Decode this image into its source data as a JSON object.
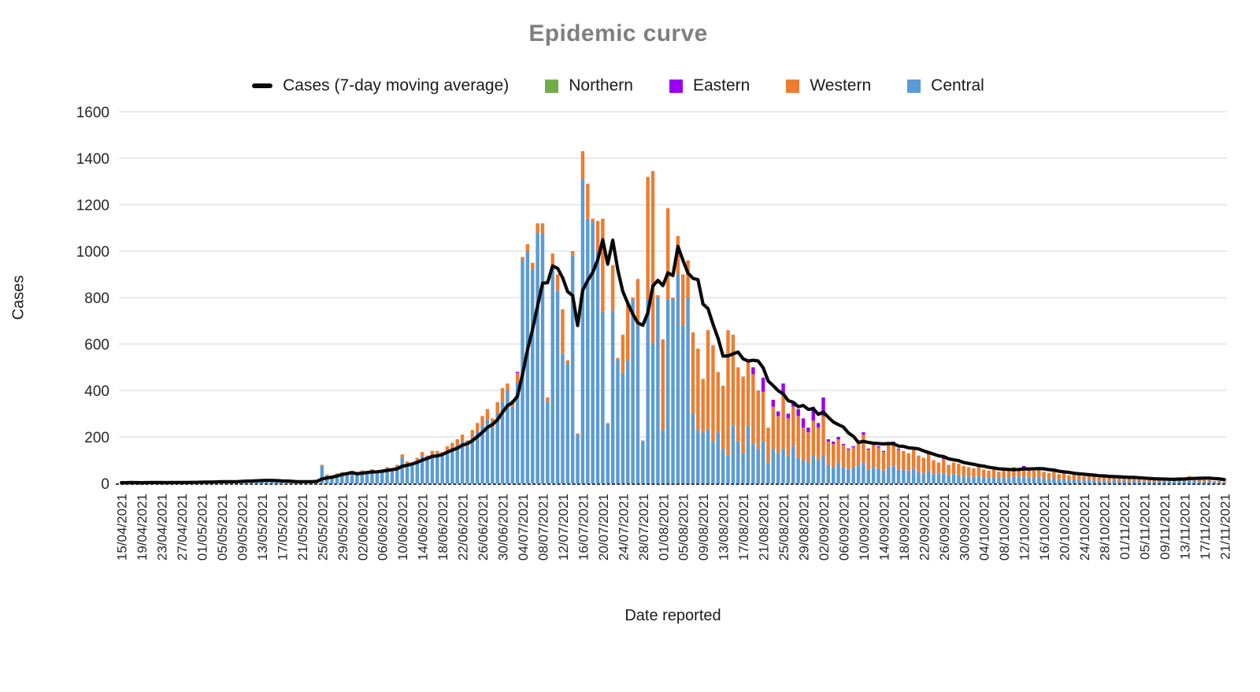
{
  "title": "Epidemic curve",
  "y_axis": {
    "label": "Cases",
    "ticks": [
      0,
      200,
      400,
      600,
      800,
      1000,
      1200,
      1400,
      1600
    ],
    "max": 1600
  },
  "x_axis": {
    "label": "Date reported"
  },
  "legend": [
    {
      "label": "Cases (7-day moving average)",
      "type": "line",
      "color": "#0a0a0a"
    },
    {
      "label": "Northern",
      "type": "box",
      "color": "#70AD47"
    },
    {
      "label": "Eastern",
      "type": "box",
      "color": "#9B00F2"
    },
    {
      "label": "Western",
      "type": "box",
      "color": "#ED7D31"
    },
    {
      "label": "Central",
      "type": "box",
      "color": "#5B9BD5"
    }
  ],
  "chart_data": {
    "type": "bar",
    "stacked": true,
    "grid": true,
    "legend_position": "top",
    "ylim": [
      0,
      1600
    ],
    "start_date": "15/04/2021",
    "end_date": "21/11/2021",
    "bar_interval": "daily",
    "n_days": 221,
    "x_tick_every": 4,
    "x_tick_labels": [
      "15/04/2021",
      "19/04/2021",
      "23/04/2021",
      "27/04/2021",
      "01/05/2021",
      "05/05/2021",
      "09/05/2021",
      "13/05/2021",
      "17/05/2021",
      "21/05/2021",
      "25/05/2021",
      "29/05/2021",
      "02/06/2021",
      "06/06/2021",
      "10/06/2021",
      "14/06/2021",
      "18/06/2021",
      "22/06/2021",
      "26/06/2021",
      "30/06/2021",
      "04/07/2021",
      "08/07/2021",
      "12/07/2021",
      "16/07/2021",
      "20/07/2021",
      "24/07/2021",
      "28/07/2021",
      "01/08/2021",
      "05/08/2021",
      "09/08/2021",
      "13/08/2021",
      "17/08/2021",
      "21/08/2021",
      "25/08/2021",
      "29/08/2021",
      "02/09/2021",
      "06/09/2021",
      "10/09/2021",
      "14/09/2021",
      "18/09/2021",
      "22/09/2021",
      "26/09/2021",
      "30/09/2021",
      "04/10/2021",
      "08/10/2021",
      "12/10/2021",
      "16/10/2021",
      "20/10/2021",
      "24/10/2021",
      "28/10/2021",
      "01/11/2021",
      "05/11/2021",
      "09/11/2021",
      "13/11/2021",
      "17/11/2021",
      "21/11/2021"
    ],
    "series": [
      {
        "name": "Central",
        "color": "#5B9BD5",
        "values": [
          2,
          3,
          4,
          3,
          2,
          3,
          5,
          4,
          3,
          2,
          4,
          5,
          3,
          4,
          6,
          5,
          6,
          7,
          5,
          8,
          9,
          7,
          6,
          8,
          12,
          14,
          10,
          16,
          13,
          9,
          8,
          7,
          6,
          8,
          7,
          5,
          6,
          8,
          10,
          12,
          75,
          35,
          28,
          40,
          45,
          38,
          42,
          40,
          52,
          45,
          56,
          48,
          54,
          64,
          60,
          72,
          110,
          85,
          78,
          98,
          118,
          105,
          122,
          130,
          118,
          138,
          147,
          165,
          182,
          160,
          198,
          225,
          250,
          275,
          240,
          300,
          350,
          400,
          330,
          435,
          960,
          1000,
          920,
          1080,
          1075,
          350,
          940,
          830,
          560,
          515,
          980,
          210,
          1310,
          1140,
          1125,
          1000,
          740,
          255,
          745,
          535,
          475,
          530,
          790,
          680,
          180,
          790,
          600,
          800,
          230,
          790,
          795,
          900,
          680,
          800,
          300,
          230,
          220,
          230,
          180,
          220,
          150,
          120,
          250,
          180,
          130,
          250,
          170,
          150,
          180,
          90,
          150,
          130,
          150,
          120,
          160,
          110,
          100,
          90,
          120,
          100,
          120,
          80,
          70,
          90,
          70,
          60,
          70,
          80,
          90,
          60,
          70,
          65,
          55,
          70,
          75,
          60,
          60,
          55,
          65,
          50,
          45,
          55,
          40,
          40,
          45,
          35,
          40,
          35,
          30,
          30,
          28,
          33,
          26,
          24,
          28,
          22,
          26,
          24,
          30,
          28,
          30,
          26,
          24,
          28,
          22,
          20,
          22,
          18,
          20,
          15,
          18,
          15,
          13,
          15,
          13,
          11,
          13,
          11,
          13,
          11,
          12,
          10,
          12,
          10,
          8,
          10,
          8,
          10,
          8,
          10,
          8,
          12,
          10,
          15,
          12,
          10,
          10,
          8,
          5,
          6,
          4
        ]
      },
      {
        "name": "Western",
        "color": "#ED7D31",
        "values": [
          1,
          0,
          1,
          0,
          0,
          1,
          0,
          0,
          1,
          0,
          0,
          1,
          0,
          0,
          1,
          0,
          0,
          1,
          0,
          0,
          1,
          0,
          0,
          1,
          2,
          1,
          0,
          2,
          1,
          0,
          1,
          0,
          0,
          1,
          0,
          0,
          1,
          0,
          1,
          2,
          5,
          3,
          2,
          3,
          4,
          3,
          4,
          3,
          4,
          4,
          5,
          5,
          5,
          6,
          6,
          8,
          15,
          10,
          10,
          12,
          17,
          15,
          18,
          10,
          17,
          22,
          25,
          25,
          28,
          25,
          32,
          35,
          40,
          45,
          40,
          50,
          60,
          30,
          30,
          40,
          15,
          30,
          30,
          40,
          40,
          20,
          50,
          70,
          190,
          15,
          20,
          5,
          120,
          150,
          15,
          130,
          400,
          5,
          195,
          5,
          165,
          250,
          10,
          200,
          5,
          530,
          745,
          10,
          390,
          395,
          5,
          165,
          220,
          160,
          350,
          350,
          230,
          430,
          415,
          260,
          270,
          540,
          390,
          320,
          330,
          270,
          300,
          250,
          215,
          150,
          180,
          160,
          230,
          160,
          170,
          180,
          140,
          130,
          150,
          140,
          170,
          100,
          100,
          100,
          95,
          85,
          85,
          100,
          120,
          85,
          100,
          90,
          80,
          95,
          100,
          85,
          80,
          75,
          85,
          70,
          65,
          70,
          60,
          50,
          60,
          45,
          50,
          50,
          45,
          40,
          37,
          42,
          34,
          31,
          37,
          28,
          34,
          31,
          40,
          32,
          35,
          34,
          31,
          37,
          28,
          25,
          28,
          22,
          25,
          20,
          22,
          20,
          17,
          20,
          17,
          14,
          17,
          14,
          17,
          14,
          13,
          10,
          13,
          10,
          7,
          10,
          7,
          10,
          7,
          10,
          7,
          13,
          10,
          15,
          13,
          10,
          7,
          7,
          5,
          6,
          4
        ]
      },
      {
        "name": "Eastern",
        "color": "#9B00F2",
        "values": [
          0,
          0,
          0,
          0,
          0,
          0,
          0,
          0,
          0,
          0,
          0,
          0,
          0,
          0,
          0,
          0,
          0,
          0,
          0,
          0,
          0,
          0,
          0,
          0,
          0,
          0,
          0,
          0,
          0,
          0,
          0,
          0,
          0,
          0,
          0,
          0,
          0,
          0,
          0,
          0,
          0,
          0,
          0,
          0,
          0,
          0,
          0,
          0,
          0,
          0,
          0,
          0,
          0,
          0,
          0,
          0,
          0,
          0,
          0,
          0,
          0,
          0,
          0,
          0,
          0,
          0,
          0,
          0,
          0,
          0,
          0,
          0,
          0,
          0,
          0,
          0,
          0,
          0,
          0,
          5,
          0,
          0,
          0,
          0,
          0,
          0,
          0,
          0,
          0,
          0,
          0,
          0,
          0,
          0,
          0,
          0,
          0,
          0,
          0,
          0,
          0,
          0,
          0,
          0,
          0,
          0,
          0,
          0,
          0,
          0,
          0,
          0,
          0,
          0,
          0,
          0,
          0,
          0,
          0,
          0,
          0,
          0,
          0,
          0,
          0,
          10,
          30,
          0,
          60,
          0,
          30,
          20,
          50,
          20,
          20,
          30,
          40,
          20,
          60,
          20,
          80,
          10,
          10,
          10,
          5,
          5,
          5,
          5,
          10,
          5,
          5,
          5,
          5,
          0,
          5,
          5,
          0,
          0,
          0,
          0,
          0,
          5,
          0,
          0,
          5,
          0,
          0,
          0,
          0,
          0,
          0,
          0,
          0,
          0,
          0,
          0,
          0,
          0,
          0,
          5,
          10,
          0,
          0,
          0,
          0,
          0,
          0,
          0,
          0,
          0,
          0,
          0,
          0,
          0,
          0,
          0,
          0,
          0,
          0,
          0,
          0,
          0,
          0,
          0,
          0,
          0,
          0,
          0,
          0,
          0,
          0,
          0,
          0,
          0,
          0,
          0,
          8,
          0,
          0,
          0,
          0
        ]
      },
      {
        "name": "Northern",
        "color": "#70AD47",
        "values": [
          0,
          0,
          0,
          0,
          0,
          0,
          0,
          0,
          0,
          0,
          0,
          0,
          0,
          0,
          0,
          1,
          0,
          0,
          0,
          0,
          0,
          0,
          0,
          0,
          0,
          0,
          0,
          0,
          0,
          0,
          0,
          0,
          0,
          0,
          0,
          0,
          0,
          0,
          0,
          0,
          0,
          0,
          0,
          0,
          0,
          0,
          0,
          0,
          0,
          0,
          0,
          0,
          0,
          0,
          0,
          0,
          0,
          0,
          0,
          0,
          0,
          0,
          0,
          0,
          0,
          0,
          3,
          0,
          0,
          0,
          0,
          0,
          0,
          0,
          0,
          0,
          0,
          0,
          0,
          0,
          0,
          0,
          0,
          0,
          5,
          0,
          0,
          0,
          0,
          0,
          0,
          0,
          0,
          0,
          0,
          0,
          0,
          0,
          0,
          0,
          0,
          0,
          0,
          0,
          0,
          0,
          0,
          0,
          0,
          0,
          0,
          0,
          0,
          0,
          0,
          0,
          0,
          0,
          0,
          0,
          0,
          0,
          0,
          0,
          0,
          0,
          0,
          0,
          0,
          0,
          0,
          0,
          0,
          0,
          0,
          0,
          0,
          0,
          0,
          0,
          0,
          0,
          0,
          0,
          0,
          0,
          0,
          0,
          0,
          0,
          0,
          0,
          0,
          5,
          0,
          0,
          0,
          0,
          0,
          0,
          0,
          0,
          0,
          0,
          0,
          0,
          0,
          0,
          0,
          0,
          0,
          0,
          0,
          0,
          0,
          0,
          0,
          0,
          0,
          0,
          0,
          0,
          0,
          0,
          0,
          0,
          0,
          0,
          0,
          0,
          0,
          0,
          0,
          0,
          0,
          0,
          0,
          0,
          0,
          0,
          0,
          0,
          0,
          0,
          0,
          0,
          0,
          0,
          0,
          0,
          0,
          0,
          0,
          0,
          0,
          0,
          0,
          0,
          0,
          0,
          0
        ]
      }
    ],
    "line": {
      "name": "Cases (7-day moving average)",
      "color": "#0a0a0a",
      "window": 7,
      "derivation": "7-day trailing mean of the daily stacked totals"
    }
  }
}
